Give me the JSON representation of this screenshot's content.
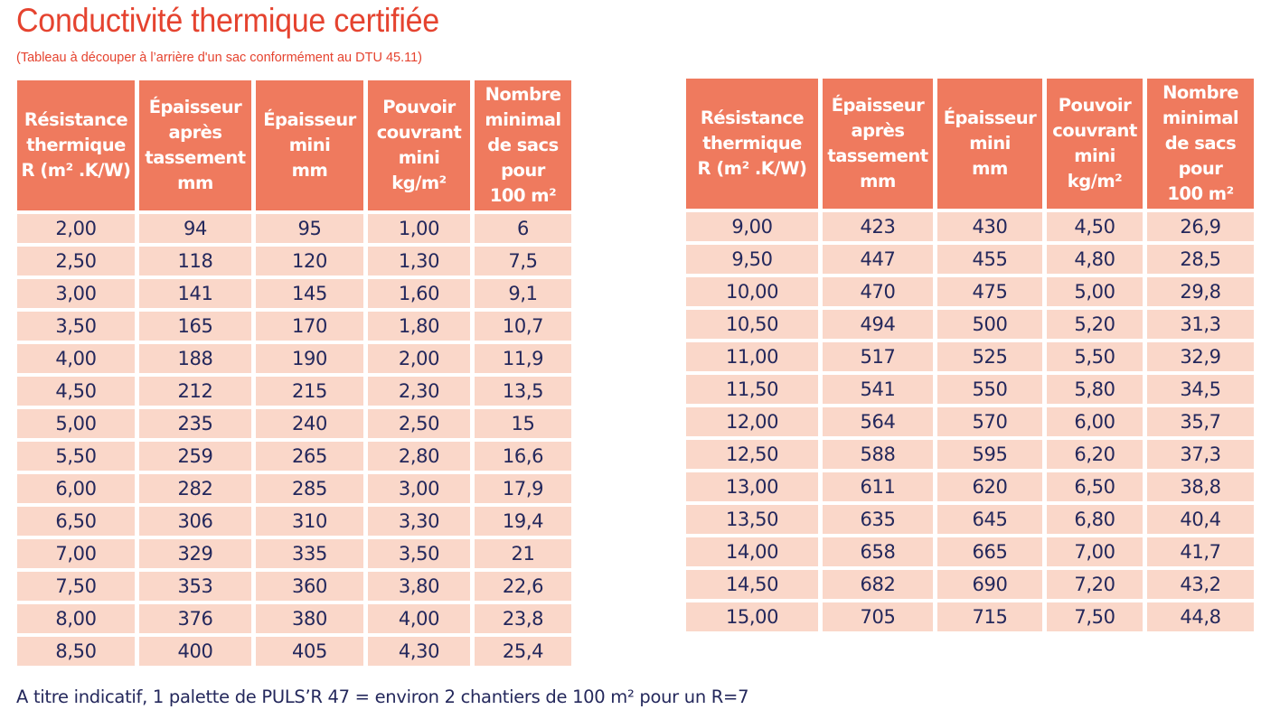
{
  "title": "Conductivité thermique certifiée",
  "subtitle": "(Tableau à découper à l’arrière d'un sac conformément au DTU 45.11)",
  "columns": [
    {
      "lines": [
        "Résistance",
        "thermique",
        "R (m² .K/W)"
      ]
    },
    {
      "lines": [
        "Épaisseur",
        "après",
        "tassement",
        "mm"
      ]
    },
    {
      "lines": [
        "Épaisseur",
        "mini",
        "mm"
      ]
    },
    {
      "lines": [
        "Pouvoir",
        "couvrant",
        "mini",
        "kg/m²"
      ]
    },
    {
      "lines": [
        "Nombre",
        "minimal",
        "de sacs",
        "pour",
        "100 m²"
      ]
    }
  ],
  "table_left": {
    "rows": [
      [
        "2,00",
        "94",
        "95",
        "1,00",
        "6"
      ],
      [
        "2,50",
        "118",
        "120",
        "1,30",
        "7,5"
      ],
      [
        "3,00",
        "141",
        "145",
        "1,60",
        "9,1"
      ],
      [
        "3,50",
        "165",
        "170",
        "1,80",
        "10,7"
      ],
      [
        "4,00",
        "188",
        "190",
        "2,00",
        "11,9"
      ],
      [
        "4,50",
        "212",
        "215",
        "2,30",
        "13,5"
      ],
      [
        "5,00",
        "235",
        "240",
        "2,50",
        "15"
      ],
      [
        "5,50",
        "259",
        "265",
        "2,80",
        "16,6"
      ],
      [
        "6,00",
        "282",
        "285",
        "3,00",
        "17,9"
      ],
      [
        "6,50",
        "306",
        "310",
        "3,30",
        "19,4"
      ],
      [
        "7,00",
        "329",
        "335",
        "3,50",
        "21"
      ],
      [
        "7,50",
        "353",
        "360",
        "3,80",
        "22,6"
      ],
      [
        "8,00",
        "376",
        "380",
        "4,00",
        "23,8"
      ],
      [
        "8,50",
        "400",
        "405",
        "4,30",
        "25,4"
      ]
    ]
  },
  "table_right": {
    "rows": [
      [
        "9,00",
        "423",
        "430",
        "4,50",
        "26,9"
      ],
      [
        "9,50",
        "447",
        "455",
        "4,80",
        "28,5"
      ],
      [
        "10,00",
        "470",
        "475",
        "5,00",
        "29,8"
      ],
      [
        "10,50",
        "494",
        "500",
        "5,20",
        "31,3"
      ],
      [
        "11,00",
        "517",
        "525",
        "5,50",
        "32,9"
      ],
      [
        "11,50",
        "541",
        "550",
        "5,80",
        "34,5"
      ],
      [
        "12,00",
        "564",
        "570",
        "6,00",
        "35,7"
      ],
      [
        "12,50",
        "588",
        "595",
        "6,20",
        "37,3"
      ],
      [
        "13,00",
        "611",
        "620",
        "6,50",
        "38,8"
      ],
      [
        "13,50",
        "635",
        "645",
        "6,80",
        "40,4"
      ],
      [
        "14,00",
        "658",
        "665",
        "7,00",
        "41,7"
      ],
      [
        "14,50",
        "682",
        "690",
        "7,20",
        "43,2"
      ],
      [
        "15,00",
        "705",
        "715",
        "7,50",
        "44,8"
      ]
    ]
  },
  "footer": "A titre indicatif, 1 palette de PULS’R 47 = environ 2 chantiers de 100 m² pour un R=7",
  "colors": {
    "title": "#e5432f",
    "header_bg": "#ef7a5e",
    "cell_bg": "#fad7c9",
    "cell_text": "#24285c"
  }
}
